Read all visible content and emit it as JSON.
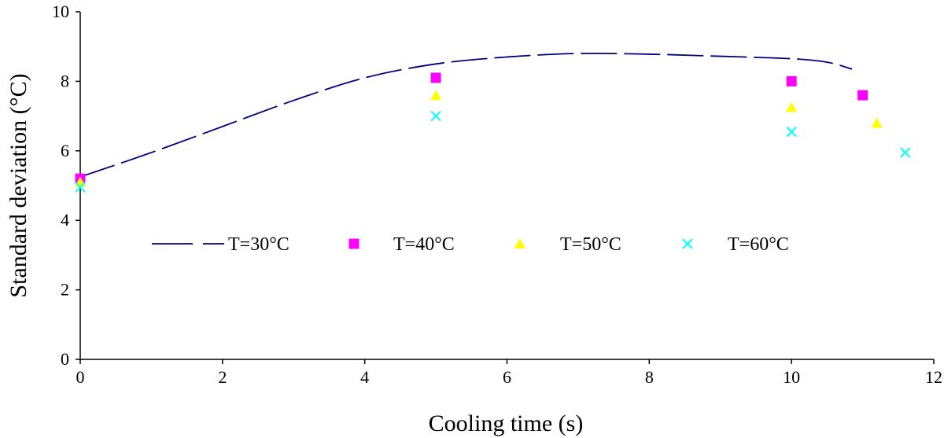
{
  "chart_data": {
    "type": "scatter",
    "title": "",
    "xlabel": "Cooling time (s)",
    "ylabel": "Standard deviation (°C)",
    "xlim": [
      0,
      12
    ],
    "ylim": [
      0,
      10
    ],
    "xticks": [
      0,
      2,
      4,
      6,
      8,
      10,
      12
    ],
    "yticks": [
      0,
      2,
      4,
      6,
      8,
      10
    ],
    "grid": false,
    "legend_position": "inside-lower-middle",
    "series": [
      {
        "name": "T=30°C",
        "style": "dashed-line",
        "color": "#000080",
        "x": [
          0,
          1,
          2,
          3,
          4,
          5,
          6,
          7,
          8,
          9,
          10,
          10.5,
          10.85
        ],
        "y": [
          5.25,
          5.95,
          6.7,
          7.45,
          8.1,
          8.5,
          8.7,
          8.8,
          8.78,
          8.72,
          8.65,
          8.55,
          8.35
        ]
      },
      {
        "name": "T=40°C",
        "style": "marker",
        "marker": "square",
        "color": "#ff00ff",
        "x": [
          0,
          5,
          10,
          11
        ],
        "y": [
          5.2,
          8.1,
          8.0,
          7.6
        ]
      },
      {
        "name": "T=50°C",
        "style": "marker",
        "marker": "triangle",
        "color": "#ffff00",
        "x": [
          0,
          5,
          10,
          11.2
        ],
        "y": [
          5.1,
          7.6,
          7.25,
          6.8
        ]
      },
      {
        "name": "T=60°C",
        "style": "marker",
        "marker": "x",
        "color": "#00ffff",
        "x": [
          0,
          5,
          10,
          11.6
        ],
        "y": [
          4.95,
          7.0,
          6.55,
          5.95
        ]
      }
    ]
  }
}
